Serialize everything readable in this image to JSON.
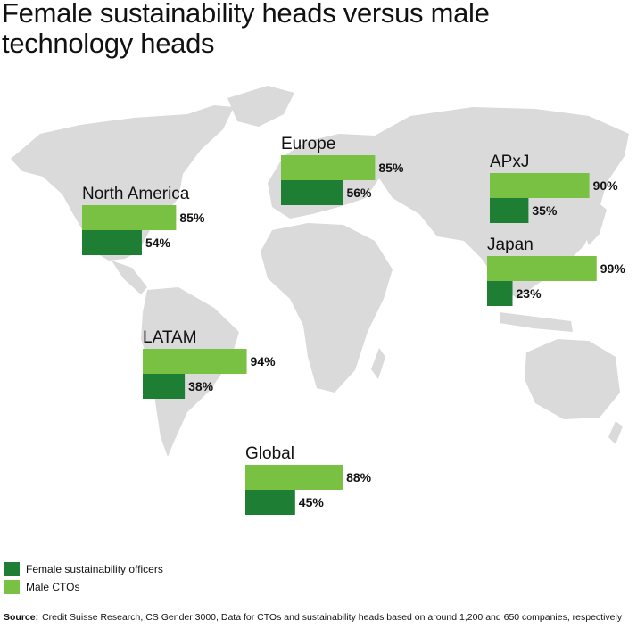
{
  "title": "Female sustainability heads versus male technology heads",
  "colors": {
    "female": "#1e7e34",
    "male": "#79c143",
    "map": "#dadada"
  },
  "legend": [
    {
      "label": "Female sustainability officers",
      "color": "#1e7e34"
    },
    {
      "label": "Male CTOs",
      "color": "#79c143"
    }
  ],
  "source": {
    "label": "Source:",
    "text": "Credit Suisse Research, CS Gender 3000, Data for CTOs and sustainability heads based on around 1,200 and 650 companies, respectively"
  },
  "chart_data": {
    "type": "bar",
    "value_unit": "%",
    "categories": [
      "North America",
      "Europe",
      "APxJ",
      "Japan",
      "LATAM",
      "Global"
    ],
    "series": [
      {
        "name": "Male CTOs",
        "values": [
          85,
          85,
          90,
          99,
          94,
          88
        ]
      },
      {
        "name": "Female sustainability officers",
        "values": [
          54,
          56,
          35,
          23,
          38,
          45
        ]
      }
    ]
  }
}
